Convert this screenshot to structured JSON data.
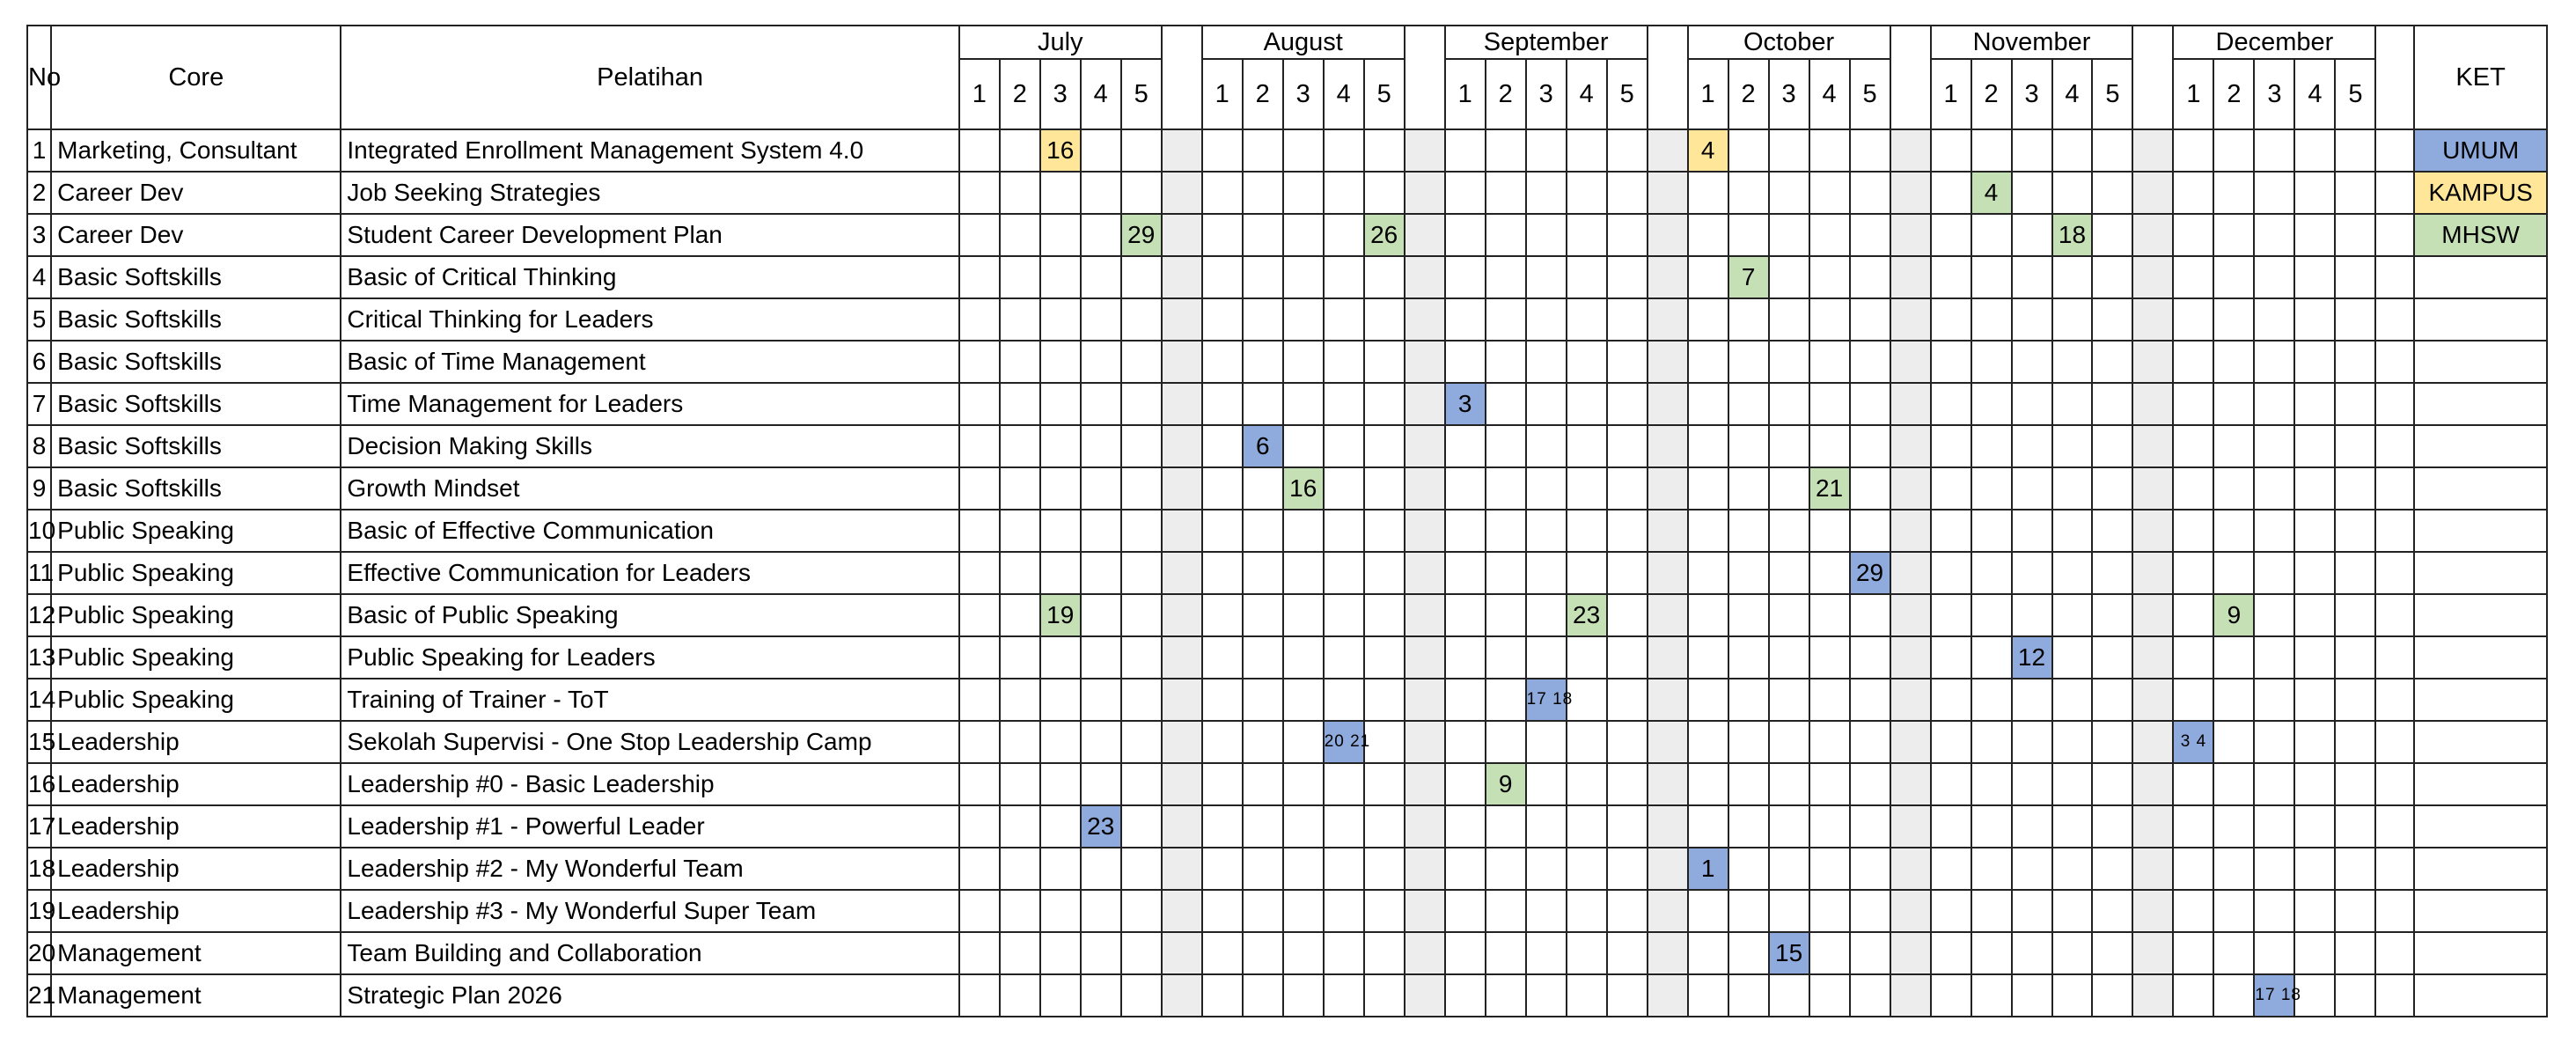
{
  "headers": {
    "no": "No",
    "core": "Core",
    "pelatihan": "Pelatihan",
    "ket": "KET"
  },
  "months": [
    "July",
    "August",
    "September",
    "October",
    "November",
    "December"
  ],
  "weeks": [
    "1",
    "2",
    "3",
    "4",
    "5"
  ],
  "legend": [
    {
      "label": "UMUM",
      "color": "#8faadc"
    },
    {
      "label": "KAMPUS",
      "color": "#ffe699"
    },
    {
      "label": "MHSW",
      "color": "#c5e0b4"
    }
  ],
  "colors": {
    "UMUM": "#8faadc",
    "KAMPUS": "#ffe699",
    "MHSW": "#c5e0b4",
    "gap": "#ededed"
  },
  "rows": [
    {
      "no": "1",
      "core": "Marketing, Consultant",
      "pelatihan": "Integrated Enrollment Management System 4.0",
      "events": [
        {
          "m": 0,
          "w": 2,
          "text": "16",
          "cat": "KAMPUS"
        },
        {
          "m": 3,
          "w": 0,
          "text": "4",
          "cat": "KAMPUS"
        }
      ]
    },
    {
      "no": "2",
      "core": "Career Dev",
      "pelatihan": "Job Seeking Strategies",
      "events": [
        {
          "m": 4,
          "w": 1,
          "text": "4",
          "cat": "MHSW"
        }
      ]
    },
    {
      "no": "3",
      "core": "Career Dev",
      "pelatihan": "Student Career Development Plan",
      "events": [
        {
          "m": 0,
          "w": 4,
          "text": "29",
          "cat": "MHSW"
        },
        {
          "m": 1,
          "w": 4,
          "text": "26",
          "cat": "MHSW"
        },
        {
          "m": 4,
          "w": 3,
          "text": "18",
          "cat": "MHSW"
        }
      ]
    },
    {
      "no": "4",
      "core": "Basic Softskills",
      "pelatihan": "Basic of Critical Thinking",
      "events": [
        {
          "m": 3,
          "w": 1,
          "text": "7",
          "cat": "MHSW"
        }
      ]
    },
    {
      "no": "5",
      "core": "Basic Softskills",
      "pelatihan": "Critical Thinking for Leaders",
      "events": []
    },
    {
      "no": "6",
      "core": "Basic Softskills",
      "pelatihan": "Basic of Time Management",
      "events": []
    },
    {
      "no": "7",
      "core": "Basic Softskills",
      "pelatihan": "Time Management for Leaders",
      "events": [
        {
          "m": 2,
          "w": 0,
          "text": "3",
          "cat": "UMUM"
        }
      ]
    },
    {
      "no": "8",
      "core": "Basic Softskills",
      "pelatihan": "Decision Making Skills",
      "events": [
        {
          "m": 1,
          "w": 1,
          "text": "6",
          "cat": "UMUM"
        }
      ]
    },
    {
      "no": "9",
      "core": "Basic Softskills",
      "pelatihan": "Growth Mindset",
      "events": [
        {
          "m": 1,
          "w": 2,
          "text": "16",
          "cat": "MHSW"
        },
        {
          "m": 3,
          "w": 3,
          "text": "21",
          "cat": "MHSW"
        }
      ]
    },
    {
      "no": "10",
      "core": "Public Speaking",
      "pelatihan": "Basic of Effective Communication",
      "events": []
    },
    {
      "no": "11",
      "core": "Public Speaking",
      "pelatihan": "Effective Communication for Leaders",
      "events": [
        {
          "m": 3,
          "w": 4,
          "text": "29",
          "cat": "UMUM"
        }
      ]
    },
    {
      "no": "12",
      "core": "Public Speaking",
      "pelatihan": "Basic of Public Speaking",
      "events": [
        {
          "m": 0,
          "w": 2,
          "text": "19",
          "cat": "MHSW"
        },
        {
          "m": 2,
          "w": 3,
          "text": "23",
          "cat": "MHSW"
        },
        {
          "m": 5,
          "w": 1,
          "text": "9",
          "cat": "MHSW"
        }
      ]
    },
    {
      "no": "13",
      "core": "Public Speaking",
      "pelatihan": "Public Speaking for Leaders",
      "events": [
        {
          "m": 4,
          "w": 2,
          "text": "12",
          "cat": "UMUM"
        }
      ]
    },
    {
      "no": "14",
      "core": "Public Speaking",
      "pelatihan": "Training of Trainer - ToT",
      "events": [
        {
          "m": 2,
          "w": 2,
          "text": "17 18",
          "cat": "UMUM",
          "small": true
        }
      ]
    },
    {
      "no": "15",
      "core": "Leadership",
      "pelatihan": "Sekolah Supervisi - One Stop Leadership Camp",
      "events": [
        {
          "m": 1,
          "w": 3,
          "text": "20 21",
          "cat": "UMUM",
          "small": true
        },
        {
          "m": 5,
          "w": 0,
          "text": "3 4",
          "cat": "UMUM",
          "small": true
        }
      ]
    },
    {
      "no": "16",
      "core": "Leadership",
      "pelatihan": "Leadership #0 - Basic Leadership",
      "events": [
        {
          "m": 2,
          "w": 1,
          "text": "9",
          "cat": "MHSW"
        }
      ]
    },
    {
      "no": "17",
      "core": "Leadership",
      "pelatihan": "Leadership #1 - Powerful Leader",
      "events": [
        {
          "m": 0,
          "w": 3,
          "text": "23",
          "cat": "UMUM"
        }
      ]
    },
    {
      "no": "18",
      "core": "Leadership",
      "pelatihan": "Leadership #2 - My Wonderful Team",
      "events": [
        {
          "m": 3,
          "w": 0,
          "text": "1",
          "cat": "UMUM"
        }
      ]
    },
    {
      "no": "19",
      "core": "Leadership",
      "pelatihan": "Leadership #3 - My Wonderful Super Team",
      "events": []
    },
    {
      "no": "20",
      "core": "Management",
      "pelatihan": "Team Building and Collaboration",
      "events": [
        {
          "m": 3,
          "w": 2,
          "text": "15",
          "cat": "UMUM"
        }
      ]
    },
    {
      "no": "21",
      "core": "Management",
      "pelatihan": "Strategic Plan 2026",
      "events": [
        {
          "m": 5,
          "w": 2,
          "text": "17 18",
          "cat": "UMUM",
          "small": true
        }
      ]
    }
  ]
}
